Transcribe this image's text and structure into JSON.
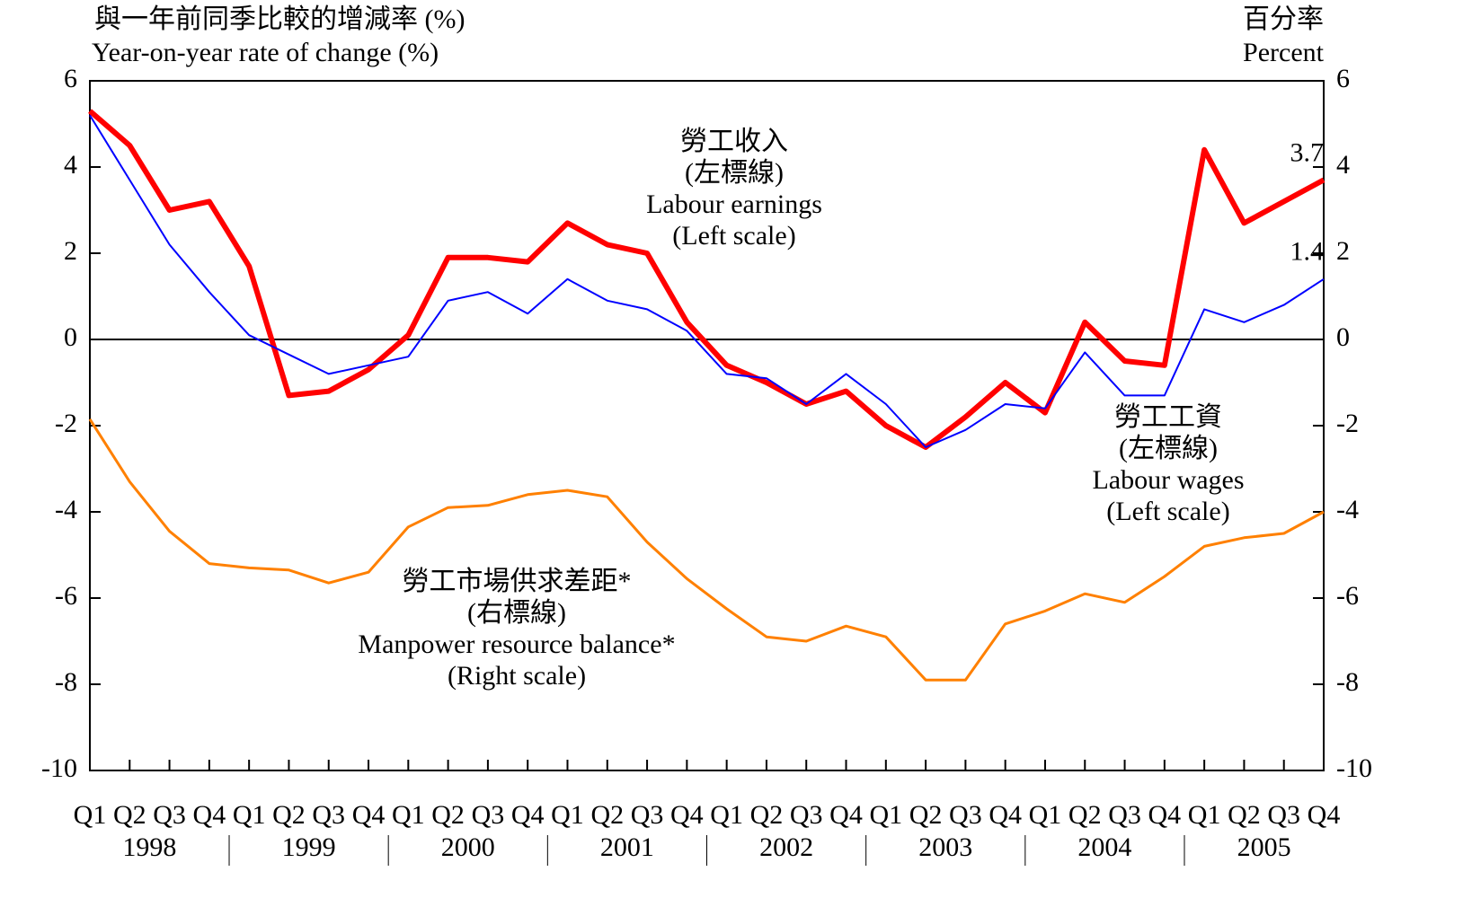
{
  "chart_data": {
    "type": "line",
    "y_title_zh": "與一年前同季比較的增減率 (%)",
    "y_title": "Year-on-year rate of change (%)",
    "y2_title_zh": "百分率",
    "y2_title": "Percent",
    "categories": [
      "Q1",
      "Q2",
      "Q3",
      "Q4",
      "Q1",
      "Q2",
      "Q3",
      "Q4",
      "Q1",
      "Q2",
      "Q3",
      "Q4",
      "Q1",
      "Q2",
      "Q3",
      "Q4",
      "Q1",
      "Q2",
      "Q3",
      "Q4",
      "Q1",
      "Q2",
      "Q3",
      "Q4",
      "Q1",
      "Q2",
      "Q3",
      "Q4",
      "Q1",
      "Q2",
      "Q3",
      "Q4"
    ],
    "years": [
      "1998",
      "1999",
      "2000",
      "2001",
      "2002",
      "2003",
      "2004",
      "2005"
    ],
    "ylim": [
      -10,
      6
    ],
    "yticks": [
      -10,
      -8,
      -6,
      -4,
      -2,
      0,
      2,
      4,
      6
    ],
    "y2lim": [
      -10,
      6
    ],
    "y2ticks": [
      -10,
      -8,
      -6,
      -4,
      -2,
      0,
      2,
      4,
      6
    ],
    "zero_line": true,
    "series": [
      {
        "name": "Labour earnings",
        "name_zh": "勞工收入",
        "scale": "(Left scale)",
        "scale_zh": "(左標線)",
        "color": "#ff0000",
        "values": [
          5.3,
          4.5,
          3.0,
          3.2,
          1.7,
          -1.3,
          -1.2,
          -0.7,
          0.1,
          1.9,
          1.9,
          1.8,
          2.7,
          2.2,
          2.0,
          0.4,
          -0.6,
          -1.0,
          -1.5,
          -1.2,
          -2.0,
          -2.5,
          -1.8,
          -1.0,
          -1.7,
          0.4,
          -0.5,
          -0.6,
          4.4,
          2.7,
          3.2,
          3.7
        ]
      },
      {
        "name": "Labour wages",
        "name_zh": "勞工工資",
        "scale": "(Left scale)",
        "scale_zh": "(左標線)",
        "color": "#0000ff",
        "values": [
          5.2,
          3.7,
          2.2,
          1.1,
          0.1,
          -0.35,
          -0.8,
          -0.6,
          -0.4,
          0.9,
          1.1,
          0.6,
          1.4,
          0.9,
          0.7,
          0.2,
          -0.8,
          -0.9,
          -1.5,
          -0.8,
          -1.5,
          -2.5,
          -2.1,
          -1.5,
          -1.6,
          -0.3,
          -1.3,
          -1.3,
          0.7,
          0.4,
          0.8,
          1.4
        ]
      },
      {
        "name": "Manpower resource balance*",
        "name_zh": "勞工市場供求差距*",
        "scale": "(Right scale)",
        "scale_zh": "(右標線)",
        "color": "#ff8000",
        "axis": "y2",
        "values": [
          -1.85,
          -3.3,
          -4.45,
          -5.2,
          -5.3,
          -5.35,
          -5.65,
          -5.4,
          -4.35,
          -3.9,
          -3.85,
          -3.6,
          -3.5,
          -3.65,
          -4.7,
          -5.55,
          -6.25,
          -6.9,
          -7.0,
          -6.65,
          -6.9,
          -7.9,
          -7.9,
          -6.6,
          -6.3,
          -5.9,
          -6.1,
          -5.5,
          -4.8,
          -4.6,
          -4.5,
          -4.0
        ]
      }
    ]
  }
}
